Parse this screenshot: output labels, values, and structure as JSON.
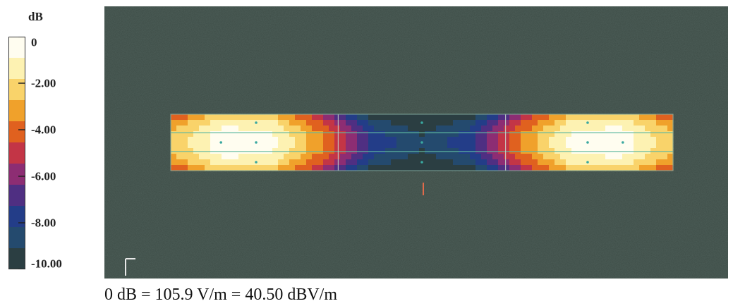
{
  "chart_data": {
    "type": "heatmap",
    "title": "",
    "unit_label": "dB",
    "colorbar": {
      "range": [
        -10,
        0
      ],
      "ticks": [
        "0",
        "-2.00",
        "-4.00",
        "-6.00",
        "-8.00",
        "-10.00"
      ],
      "tick_values": [
        0,
        -2,
        -4,
        -6,
        -8,
        -10
      ],
      "colors": [
        "#fffdf0",
        "#fdf2b2",
        "#f9d36a",
        "#f0a12b",
        "#e0611f",
        "#c33546",
        "#8d2d73",
        "#4f2f82",
        "#233d88",
        "#244a6e",
        "#2b3e42"
      ]
    },
    "field_strip": {
      "description_values_db": {
        "ends": 0,
        "center": -9
      },
      "profile_x": [
        0.0,
        0.1,
        0.2,
        0.3,
        0.4,
        0.5,
        0.6,
        0.7,
        0.8,
        0.9,
        1.0
      ],
      "profile_db": [
        -2.5,
        -0.3,
        -0.5,
        -3.5,
        -7.5,
        -9.0,
        -7.5,
        -3.5,
        -0.5,
        -0.3,
        -2.5
      ]
    },
    "background_color": "#3a4a44"
  },
  "caption": "0 dB = 105.9 V/m = 40.50 dBV/m"
}
